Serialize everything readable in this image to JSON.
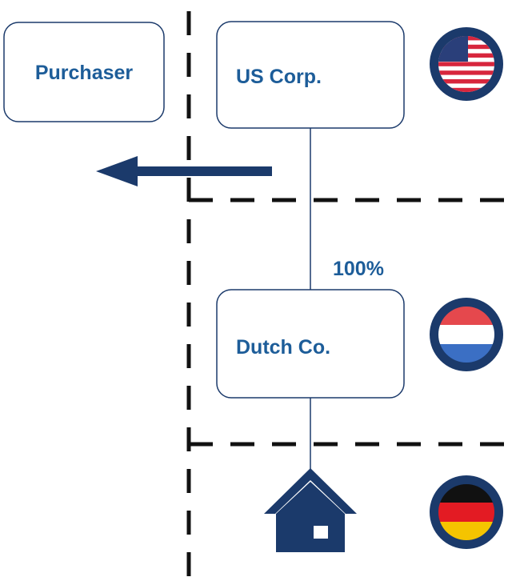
{
  "nodes": [
    {
      "label": "Purchaser"
    },
    {
      "label": "US Corp."
    },
    {
      "label": "Dutch Co."
    }
  ],
  "edges": [
    {
      "label": "100%"
    }
  ]
}
